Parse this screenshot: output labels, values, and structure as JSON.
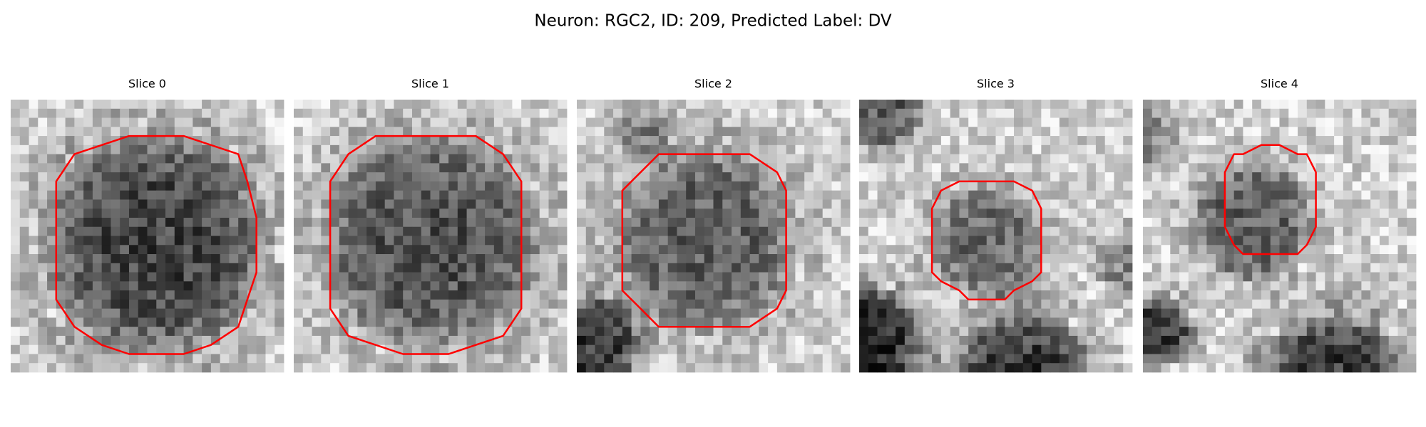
{
  "title": "Neuron: RGC2, ID: 209, Predicted Label: DV",
  "panels": [
    {
      "title": "Slice 0"
    },
    {
      "title": "Slice 1"
    },
    {
      "title": "Slice 2"
    },
    {
      "title": "Slice 3"
    },
    {
      "title": "Slice 4"
    }
  ]
}
